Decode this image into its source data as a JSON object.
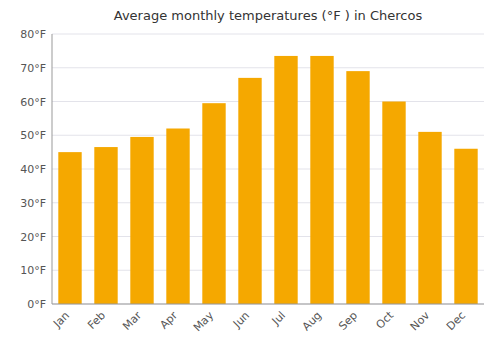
{
  "chart_data": {
    "type": "bar",
    "title": "Average monthly temperatures (°F ) in Chercos",
    "categories": [
      "Jan",
      "Feb",
      "Mar",
      "Apr",
      "May",
      "Jun",
      "Jul",
      "Aug",
      "Sep",
      "Oct",
      "Nov",
      "Dec"
    ],
    "values": [
      45,
      46.5,
      49.5,
      52,
      59.5,
      67,
      73.5,
      73.5,
      69,
      60,
      51,
      46
    ],
    "color": "#F5A800",
    "ylim": [
      0,
      80
    ],
    "yticks": [
      {
        "value": 0,
        "label": "0°F"
      },
      {
        "value": 10,
        "label": "10°F"
      },
      {
        "value": 20,
        "label": "20°F"
      },
      {
        "value": 30,
        "label": "30°F"
      },
      {
        "value": 40,
        "label": "40°F"
      },
      {
        "value": 50,
        "label": "50°F"
      },
      {
        "value": 60,
        "label": "60°F"
      },
      {
        "value": 70,
        "label": "70°F"
      },
      {
        "value": 80,
        "label": "80°F"
      }
    ],
    "grid": true
  }
}
